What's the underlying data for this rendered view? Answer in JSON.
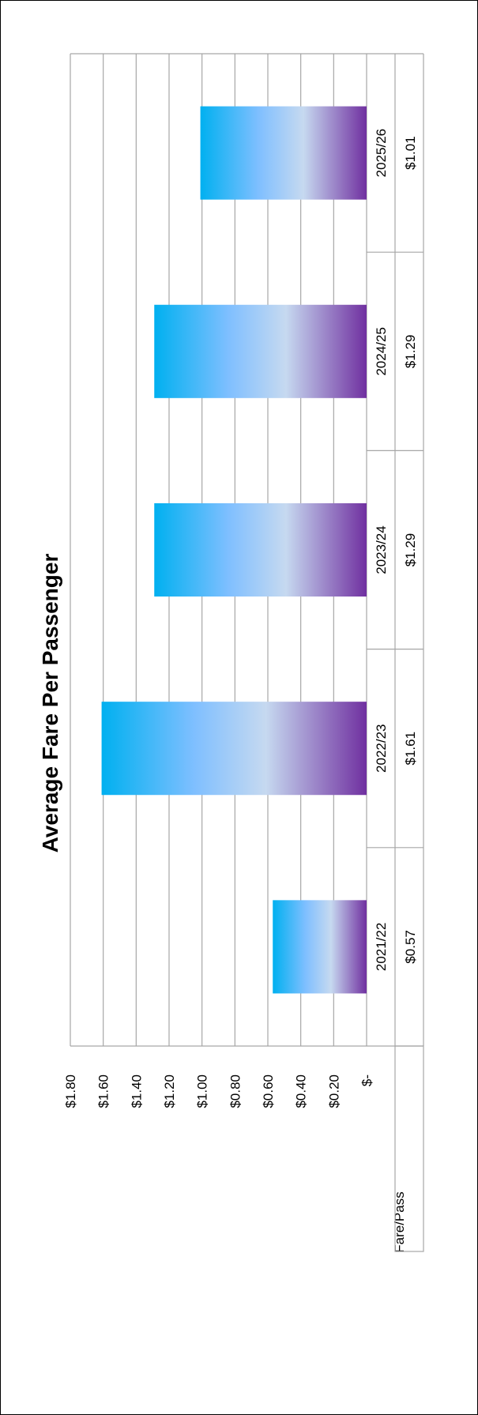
{
  "chart_data": {
    "type": "bar",
    "title": "Average Fare Per Passenger",
    "categories": [
      "2021/22",
      "2022/23",
      "2023/24",
      "2024/25",
      "2025/26"
    ],
    "series": [
      {
        "name": "Fare/Pass",
        "values": [
          0.57,
          1.61,
          1.29,
          1.29,
          1.01
        ]
      }
    ],
    "data_labels": [
      "$0.57",
      "$1.61",
      "$1.29",
      "$1.29",
      "$1.01"
    ],
    "y_ticks": [
      "$-",
      "$0.20",
      "$0.40",
      "$0.60",
      "$0.80",
      "$1.00",
      "$1.20",
      "$1.40",
      "$1.60",
      "$1.80"
    ],
    "y_tick_values": [
      0,
      0.2,
      0.4,
      0.6,
      0.8,
      1.0,
      1.2,
      1.4,
      1.6,
      1.8
    ],
    "ylim": [
      0,
      1.8
    ],
    "xlabel": "",
    "ylabel": "",
    "grid": true,
    "orientation": "rotated 90 degrees counter-clockwise",
    "data_table": true,
    "legend": "none",
    "colors": {
      "bar_gradient_start": "#00b0f0",
      "bar_gradient_mid1": "#7fbfff",
      "bar_gradient_mid2": "#c6d9f0",
      "bar_gradient_end": "#7030a0",
      "gridline": "#a6a6a6",
      "border": "#000000"
    }
  }
}
